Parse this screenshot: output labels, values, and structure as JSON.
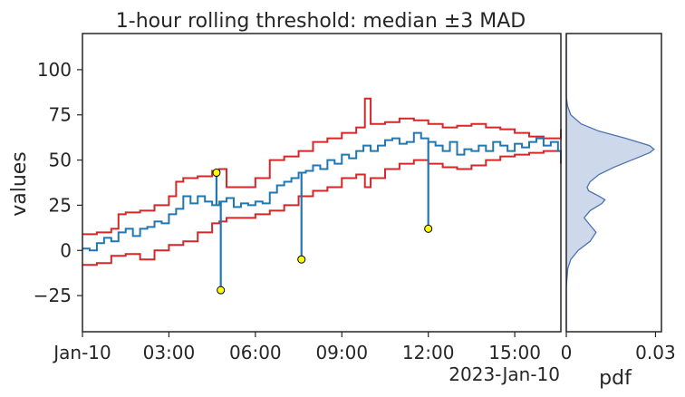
{
  "chart_data": [
    {
      "type": "line",
      "title": "1-hour rolling threshold: median ±3 MAD",
      "xlabel": "",
      "ylabel": "values",
      "x_ticks": [
        "Jan-10",
        "03:00",
        "06:00",
        "09:00",
        "12:00",
        "15:00"
      ],
      "x_tick_hours": [
        0,
        3,
        6,
        9,
        12,
        15
      ],
      "x_offset_label": "2023-Jan-10",
      "y_ticks": [
        100,
        75,
        50,
        25,
        0,
        -25
      ],
      "y_tick_labels": [
        "100",
        "75",
        "50",
        "25",
        "0",
        "−25"
      ],
      "xlim_hours": [
        0,
        16.6
      ],
      "ylim": [
        -45,
        120
      ],
      "colors": {
        "series": "#1f77b4",
        "bounds": "#d62728",
        "anomaly_fill": "#ffff00"
      },
      "series": [
        {
          "values": [
            [
              0.0,
              1
            ],
            [
              0.25,
              0
            ],
            [
              0.5,
              4
            ],
            [
              0.75,
              7
            ],
            [
              1.0,
              5
            ],
            [
              1.25,
              10
            ],
            [
              1.5,
              12
            ],
            [
              1.75,
              8
            ],
            [
              2.0,
              12
            ],
            [
              2.25,
              13
            ],
            [
              2.5,
              16
            ],
            [
              2.75,
              15
            ],
            [
              3.0,
              20
            ],
            [
              3.25,
              23
            ],
            [
              3.5,
              30
            ],
            [
              3.75,
              26
            ],
            [
              4.0,
              30
            ],
            [
              4.25,
              27
            ],
            [
              4.5,
              25
            ],
            [
              4.75,
              27
            ],
            [
              5.0,
              29
            ],
            [
              5.25,
              24
            ],
            [
              5.5,
              26
            ],
            [
              5.75,
              25
            ],
            [
              6.0,
              27
            ],
            [
              6.25,
              26
            ],
            [
              6.5,
              32
            ],
            [
              6.75,
              36
            ],
            [
              7.0,
              38
            ],
            [
              7.25,
              40
            ],
            [
              7.5,
              43
            ],
            [
              7.75,
              44
            ],
            [
              8.0,
              47
            ],
            [
              8.25,
              45
            ],
            [
              8.5,
              50
            ],
            [
              8.75,
              48
            ],
            [
              9.0,
              53
            ],
            [
              9.25,
              51
            ],
            [
              9.5,
              55
            ],
            [
              9.75,
              58
            ],
            [
              10.0,
              55
            ],
            [
              10.25,
              58
            ],
            [
              10.5,
              61
            ],
            [
              10.75,
              62
            ],
            [
              11.0,
              59
            ],
            [
              11.25,
              60
            ],
            [
              11.5,
              65
            ],
            [
              11.75,
              62
            ],
            [
              12.0,
              60
            ],
            [
              12.25,
              58
            ],
            [
              12.5,
              55
            ],
            [
              12.75,
              60
            ],
            [
              13.0,
              53
            ],
            [
              13.25,
              56
            ],
            [
              13.5,
              55
            ],
            [
              13.75,
              58
            ],
            [
              14.0,
              55
            ],
            [
              14.25,
              60
            ],
            [
              14.5,
              58
            ],
            [
              14.75,
              55
            ],
            [
              15.0,
              59
            ],
            [
              15.25,
              57
            ],
            [
              15.5,
              60
            ],
            [
              15.75,
              62
            ],
            [
              16.0,
              58
            ],
            [
              16.25,
              60
            ],
            [
              16.5,
              55
            ],
            [
              16.6,
              50
            ]
          ]
        },
        {
          "values": [
            [
              0.0,
              9
            ],
            [
              0.5,
              10
            ],
            [
              1.0,
              12
            ],
            [
              1.25,
              20
            ],
            [
              1.5,
              21
            ],
            [
              2.0,
              22
            ],
            [
              2.5,
              25
            ],
            [
              3.0,
              30
            ],
            [
              3.25,
              38
            ],
            [
              3.5,
              40
            ],
            [
              4.0,
              41
            ],
            [
              4.5,
              44
            ],
            [
              4.75,
              45
            ],
            [
              5.0,
              35
            ],
            [
              5.5,
              35
            ],
            [
              6.0,
              40
            ],
            [
              6.5,
              50
            ],
            [
              7.0,
              52
            ],
            [
              7.5,
              55
            ],
            [
              8.0,
              60
            ],
            [
              8.5,
              62
            ],
            [
              9.0,
              65
            ],
            [
              9.5,
              68
            ],
            [
              9.8,
              84
            ],
            [
              10.0,
              70
            ],
            [
              10.5,
              71
            ],
            [
              11.0,
              73
            ],
            [
              11.5,
              72
            ],
            [
              12.0,
              70
            ],
            [
              12.5,
              68
            ],
            [
              13.0,
              69
            ],
            [
              13.5,
              70
            ],
            [
              14.0,
              68
            ],
            [
              14.5,
              67
            ],
            [
              15.0,
              65
            ],
            [
              15.5,
              63
            ],
            [
              16.0,
              62
            ],
            [
              16.6,
              67
            ]
          ]
        },
        {
          "values": [
            [
              0.0,
              -8
            ],
            [
              0.5,
              -7
            ],
            [
              1.0,
              -3
            ],
            [
              1.5,
              -2
            ],
            [
              2.0,
              -5
            ],
            [
              2.5,
              0
            ],
            [
              3.0,
              3
            ],
            [
              3.5,
              5
            ],
            [
              4.0,
              10
            ],
            [
              4.5,
              15
            ],
            [
              4.75,
              16
            ],
            [
              5.0,
              18
            ],
            [
              5.5,
              18
            ],
            [
              6.0,
              20
            ],
            [
              6.5,
              22
            ],
            [
              7.0,
              25
            ],
            [
              7.5,
              30
            ],
            [
              8.0,
              33
            ],
            [
              8.5,
              35
            ],
            [
              9.0,
              40
            ],
            [
              9.5,
              42
            ],
            [
              9.8,
              35
            ],
            [
              10.0,
              40
            ],
            [
              10.5,
              45
            ],
            [
              11.0,
              48
            ],
            [
              11.5,
              50
            ],
            [
              12.0,
              48
            ],
            [
              12.5,
              46
            ],
            [
              13.0,
              45
            ],
            [
              13.5,
              47
            ],
            [
              14.0,
              50
            ],
            [
              14.5,
              52
            ],
            [
              15.0,
              53
            ],
            [
              15.5,
              54
            ],
            [
              16.0,
              55
            ],
            [
              16.6,
              48
            ]
          ]
        }
      ],
      "anomalies": [
        {
          "x": 4.65,
          "y": 43
        },
        {
          "x": 4.8,
          "y": -22
        },
        {
          "x": 7.6,
          "y": -5
        },
        {
          "x": 12.0,
          "y": 12
        }
      ]
    },
    {
      "type": "area",
      "xlabel": "pdf",
      "x_ticks": [
        "0",
        "0.03"
      ],
      "x_tick_values": [
        0,
        0.03
      ],
      "xlim": [
        0,
        0.032
      ],
      "ylim": [
        -45,
        120
      ],
      "colors": {
        "fill": "#cdd8ea",
        "line": "#4c72b0"
      },
      "density": [
        [
          -45,
          0.0
        ],
        [
          -20,
          0.0
        ],
        [
          -10,
          0.0005
        ],
        [
          -5,
          0.0015
        ],
        [
          0,
          0.004
        ],
        [
          5,
          0.008
        ],
        [
          10,
          0.01
        ],
        [
          15,
          0.0075
        ],
        [
          18,
          0.006
        ],
        [
          22,
          0.008
        ],
        [
          26,
          0.012
        ],
        [
          28,
          0.013
        ],
        [
          30,
          0.011
        ],
        [
          33,
          0.0075
        ],
        [
          35,
          0.007
        ],
        [
          38,
          0.008
        ],
        [
          42,
          0.011
        ],
        [
          46,
          0.016
        ],
        [
          50,
          0.022
        ],
        [
          54,
          0.028
        ],
        [
          56,
          0.0295
        ],
        [
          58,
          0.028
        ],
        [
          62,
          0.02
        ],
        [
          66,
          0.011
        ],
        [
          70,
          0.005
        ],
        [
          75,
          0.0015
        ],
        [
          80,
          0.0004
        ],
        [
          85,
          0.0
        ],
        [
          120,
          0.0
        ]
      ]
    }
  ]
}
